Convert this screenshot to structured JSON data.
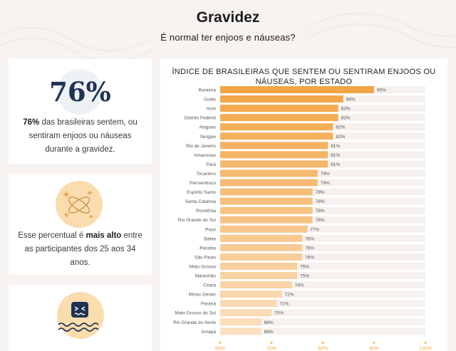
{
  "page": {
    "title": "Gravidez",
    "subtitle": "É normal ter enjoos e náuseas?"
  },
  "card1": {
    "stat": "76%",
    "text_bold": "76%",
    "text_rest": " das brasileiras sentem, ou sentiram enjoos ou náuseas durante a gravidez."
  },
  "card2": {
    "text_pre": "Esse percentual é ",
    "text_bold": "mais alto",
    "text_post": " entre as participantes dos 25 aos 34 anos."
  },
  "colors": {
    "bar_track": "#f5f1ef",
    "bar_top": "#f2a545",
    "bar_bottom": "#fbdfbf",
    "tick_dot": "#f0a94a",
    "navy": "#1f3254",
    "icon_bg": "#fbdcae"
  },
  "chart_data": {
    "type": "bar",
    "orientation": "horizontal",
    "title": "ÍNDICE DE BRASILEIRAS QUE SENTEM OU SENTIRAM ENJOOS OU NÁUSEAS, POR ESTADO",
    "categories": [
      "Roraima",
      "Goiás",
      "Acre",
      "Distrito Federal",
      "Alagoas",
      "Sergipe",
      "Rio de Janeiro",
      "Amazonas",
      "Pará",
      "Tocantins",
      "Pernambuco",
      "Espírito Santo",
      "Santa Catarina",
      "Rondônia",
      "Rio Grande do Sul",
      "Piauí",
      "Bahia",
      "Paraíba",
      "São Paulo",
      "Mato Grosso",
      "Maranhão",
      "Ceará",
      "Minas Gerais",
      "Paraná",
      "Mato Grosso do Sul",
      "Rio Grande do Norte",
      "Amapá"
    ],
    "values": [
      90,
      84,
      83,
      83,
      82,
      82,
      81,
      81,
      81,
      79,
      79,
      78,
      78,
      78,
      78,
      77,
      76,
      76,
      76,
      75,
      75,
      74,
      72,
      71,
      70,
      68,
      68
    ],
    "value_labels": [
      "90%",
      "84%",
      "83%",
      "83%",
      "82%",
      "82%",
      "81%",
      "81%",
      "81%",
      "79%",
      "79%",
      "78%",
      "78%",
      "78%",
      "78%",
      "77%",
      "76%",
      "76%",
      "76%",
      "75%",
      "75%",
      "74%",
      "72%",
      "71%",
      "70%",
      "68%",
      "68%"
    ],
    "xlim": [
      60,
      100
    ],
    "x_ticks": [
      60,
      70,
      80,
      90,
      100
    ],
    "x_tick_labels": [
      "60%",
      "70%",
      "80%",
      "90%",
      "100%"
    ],
    "grid": false,
    "legend": "none"
  }
}
